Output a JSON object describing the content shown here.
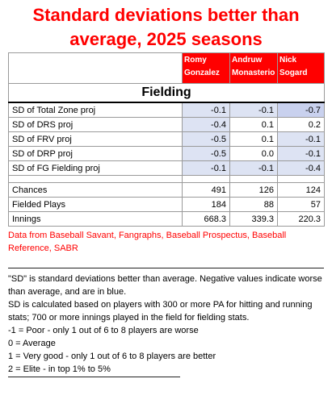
{
  "title": "Standard deviations better than average, 2025 seasons",
  "players": [
    {
      "name": "Romy Gonzalez"
    },
    {
      "name": "Andruw Monasterio"
    },
    {
      "name": "Nick Sogard"
    }
  ],
  "section_title": "Fielding",
  "sd_rows": [
    {
      "label": "SD of Total Zone proj",
      "values": [
        "-0.1",
        "-0.1",
        "-0.7"
      ]
    },
    {
      "label": "SD of DRS proj",
      "values": [
        "-0.4",
        "0.1",
        "0.2"
      ]
    },
    {
      "label": "SD of FRV proj",
      "values": [
        "-0.5",
        "0.1",
        "-0.1"
      ]
    },
    {
      "label": "SD of DRP proj",
      "values": [
        "-0.5",
        "0.0",
        "-0.1"
      ]
    },
    {
      "label": "SD of FG Fielding proj",
      "values": [
        "-0.1",
        "-0.1",
        "-0.4"
      ]
    }
  ],
  "count_rows": [
    {
      "label": "Chances",
      "values": [
        "491",
        "126",
        "124"
      ]
    },
    {
      "label": "Fielded Plays",
      "values": [
        "184",
        "88",
        "57"
      ]
    },
    {
      "label": "Innings",
      "values": [
        "668.3",
        "339.3",
        "220.3"
      ]
    }
  ],
  "source": "Data from Baseball Savant, Fangraphs, Baseball Prospectus, Baseball Reference, SABR",
  "notes": {
    "sd_def": "\"SD\" is standard deviations better than average. Negative values indicate worse than average, and are in blue.",
    "sd_calc": "SD is calculated based on players with 300 or more PA for hitting and running stats; 700 or more innings played in the field for fielding stats.",
    "scale": [
      "-1 = Poor - only 1 out of 6 to 8 players are worse",
      "0 = Average",
      "1 = Very good - only 1 out of 6 to 8 players are better",
      "2 = Elite - in top 1% to 5%"
    ]
  },
  "colors": {
    "title": "#ff0000",
    "header_bg": "#ff0000",
    "negative_shade_base": "#dde3f3",
    "negative_shade_strong": "#c9d1ee"
  }
}
